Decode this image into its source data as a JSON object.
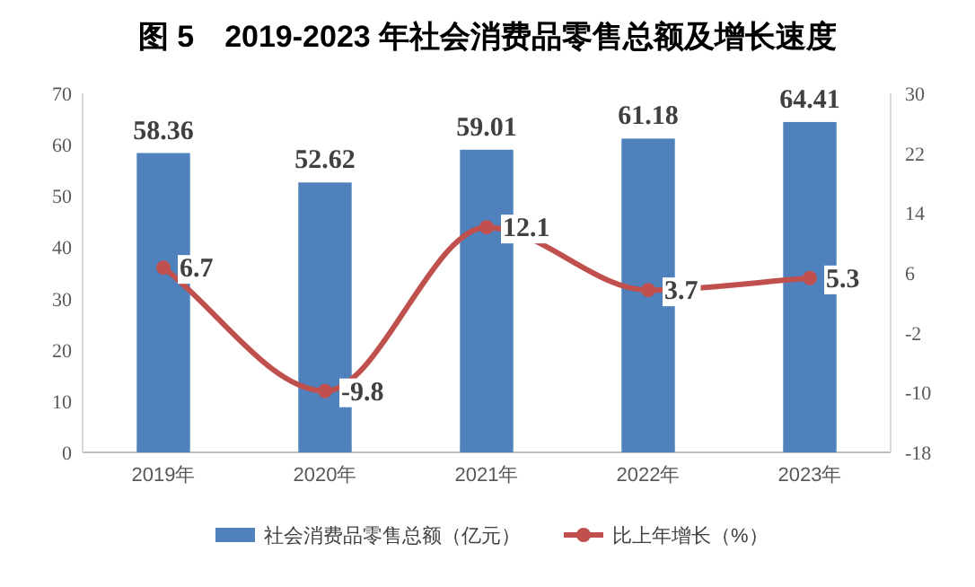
{
  "chart_data": {
    "type": "bar",
    "title": "图 5　2019-2023 年社会消费品零售总额及增长速度",
    "categories": [
      "2019年",
      "2020年",
      "2021年",
      "2022年",
      "2023年"
    ],
    "series": [
      {
        "name": "社会消费品零售总额（亿元）",
        "color": "#4f81bd",
        "values": [
          58.36,
          52.62,
          59.01,
          61.18,
          64.41
        ]
      },
      {
        "name": "比上年增长（%）",
        "type": "line",
        "axis": "y2",
        "color": "#c0504d",
        "marker": "circle",
        "values": [
          6.7,
          -9.8,
          12.1,
          3.7,
          5.3
        ]
      }
    ],
    "ylim": [
      0,
      70
    ],
    "yticks": [
      0,
      10,
      20,
      30,
      40,
      50,
      60,
      70
    ],
    "y2lim": [
      -18,
      30
    ],
    "y2ticks": [
      -18,
      -10,
      -2,
      6,
      14,
      22,
      30
    ],
    "data_labels": true,
    "grid": false,
    "legend": "bottom"
  }
}
